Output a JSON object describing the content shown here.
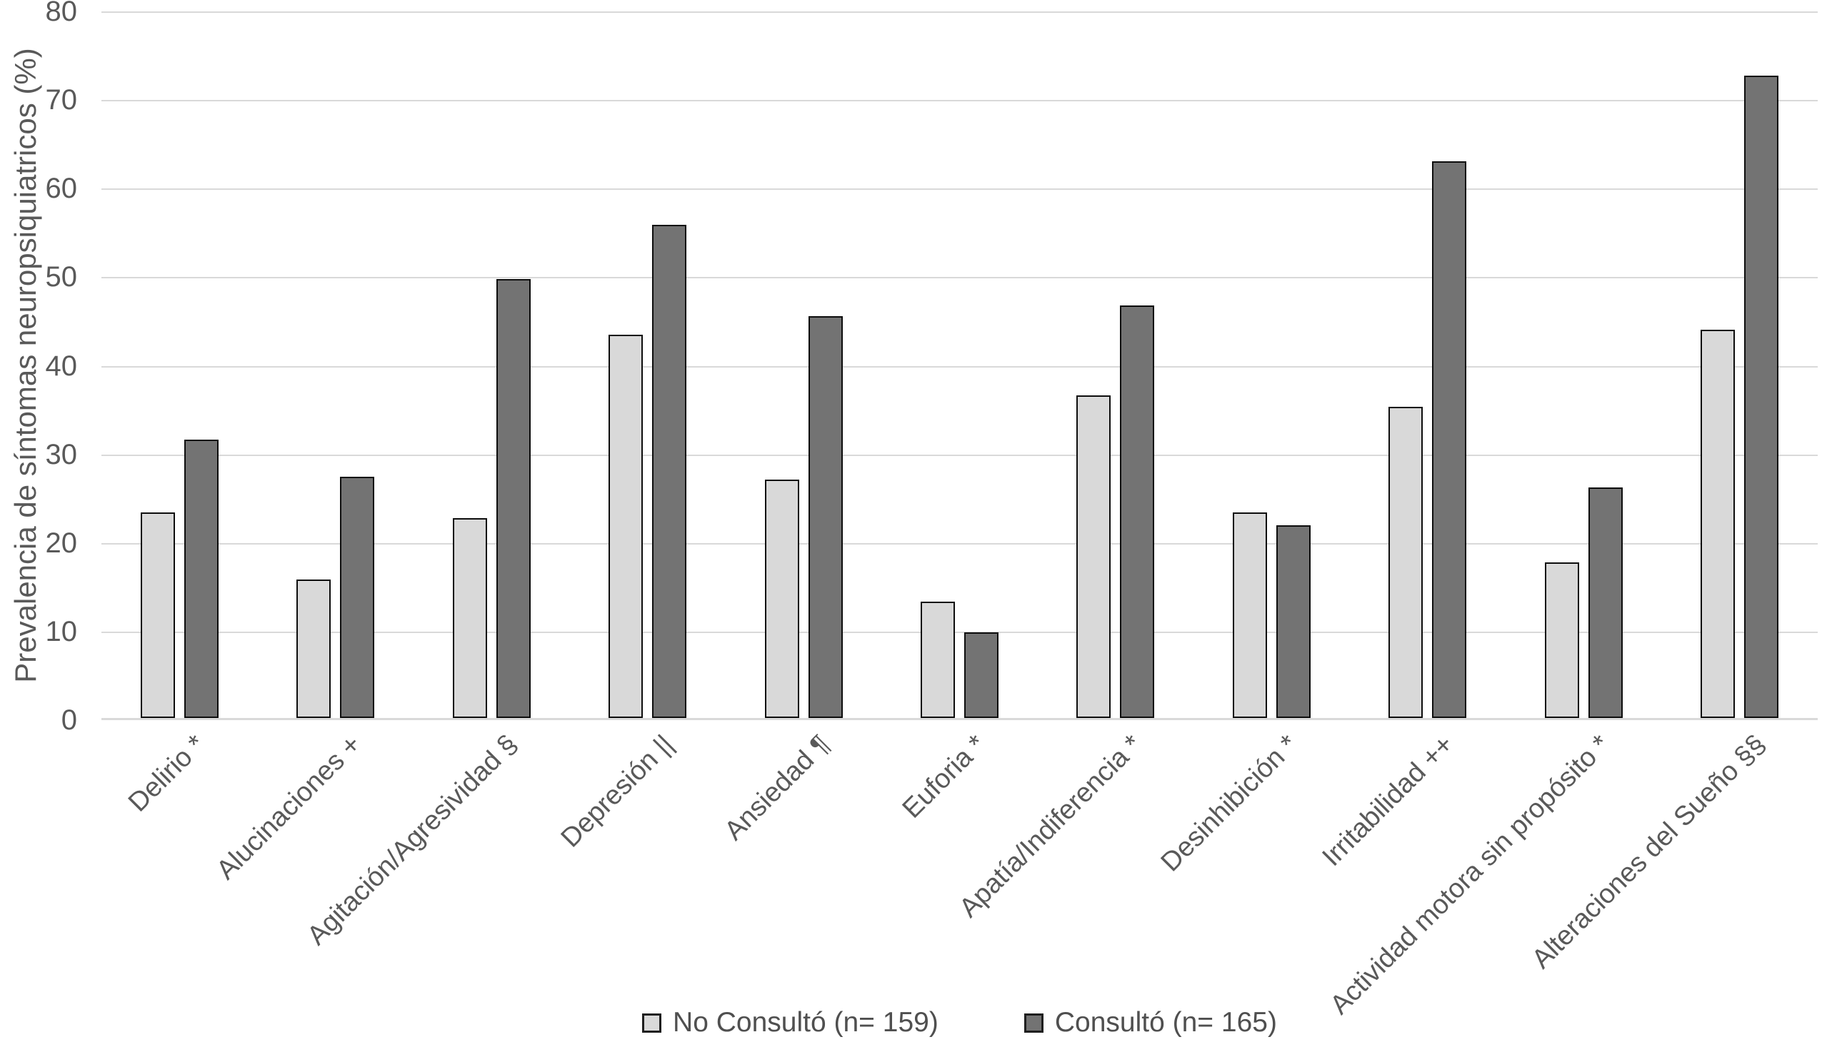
{
  "chart_data": {
    "type": "bar",
    "title": "",
    "xlabel": "",
    "ylabel": "Prevalencia de síntomas neuropsiquiatricos (%)",
    "ylim": [
      0,
      80
    ],
    "yticks": [
      0,
      10,
      20,
      30,
      40,
      50,
      60,
      70,
      80
    ],
    "grid": true,
    "legend_position": "bottom-center",
    "x_label_rotation_deg": 45,
    "categories": [
      "Delirio *",
      "Alucinaciones +",
      "Agitación/Agresividad §",
      "Depresión ||",
      "Ansiedad ¶",
      "Euforia *",
      "Apatía/Indiferencia *",
      "Desinhibición *",
      "Irritabilidad ++",
      "Actividad motora sin propósito *",
      "Alteraciones del Sueño §§"
    ],
    "series": [
      {
        "name": "No Consultó (n= 159)",
        "color": "#d9d9d9",
        "values": [
          23.3,
          15.7,
          22.6,
          43.4,
          27.0,
          13.2,
          36.5,
          23.3,
          35.2,
          17.6,
          44.0
        ]
      },
      {
        "name": "Consultó (n= 165)",
        "color": "#737373",
        "values": [
          31.5,
          27.3,
          49.7,
          55.8,
          45.5,
          9.7,
          46.7,
          21.8,
          63.0,
          26.1,
          72.7
        ]
      }
    ],
    "colors": {
      "gridline": "#d9d9d9",
      "axis_line": "#d9d9d9",
      "bar_border": "#0d0d0d",
      "tick_text": "#595959",
      "legend_text": "#4f4f4f",
      "background": "#ffffff"
    }
  }
}
